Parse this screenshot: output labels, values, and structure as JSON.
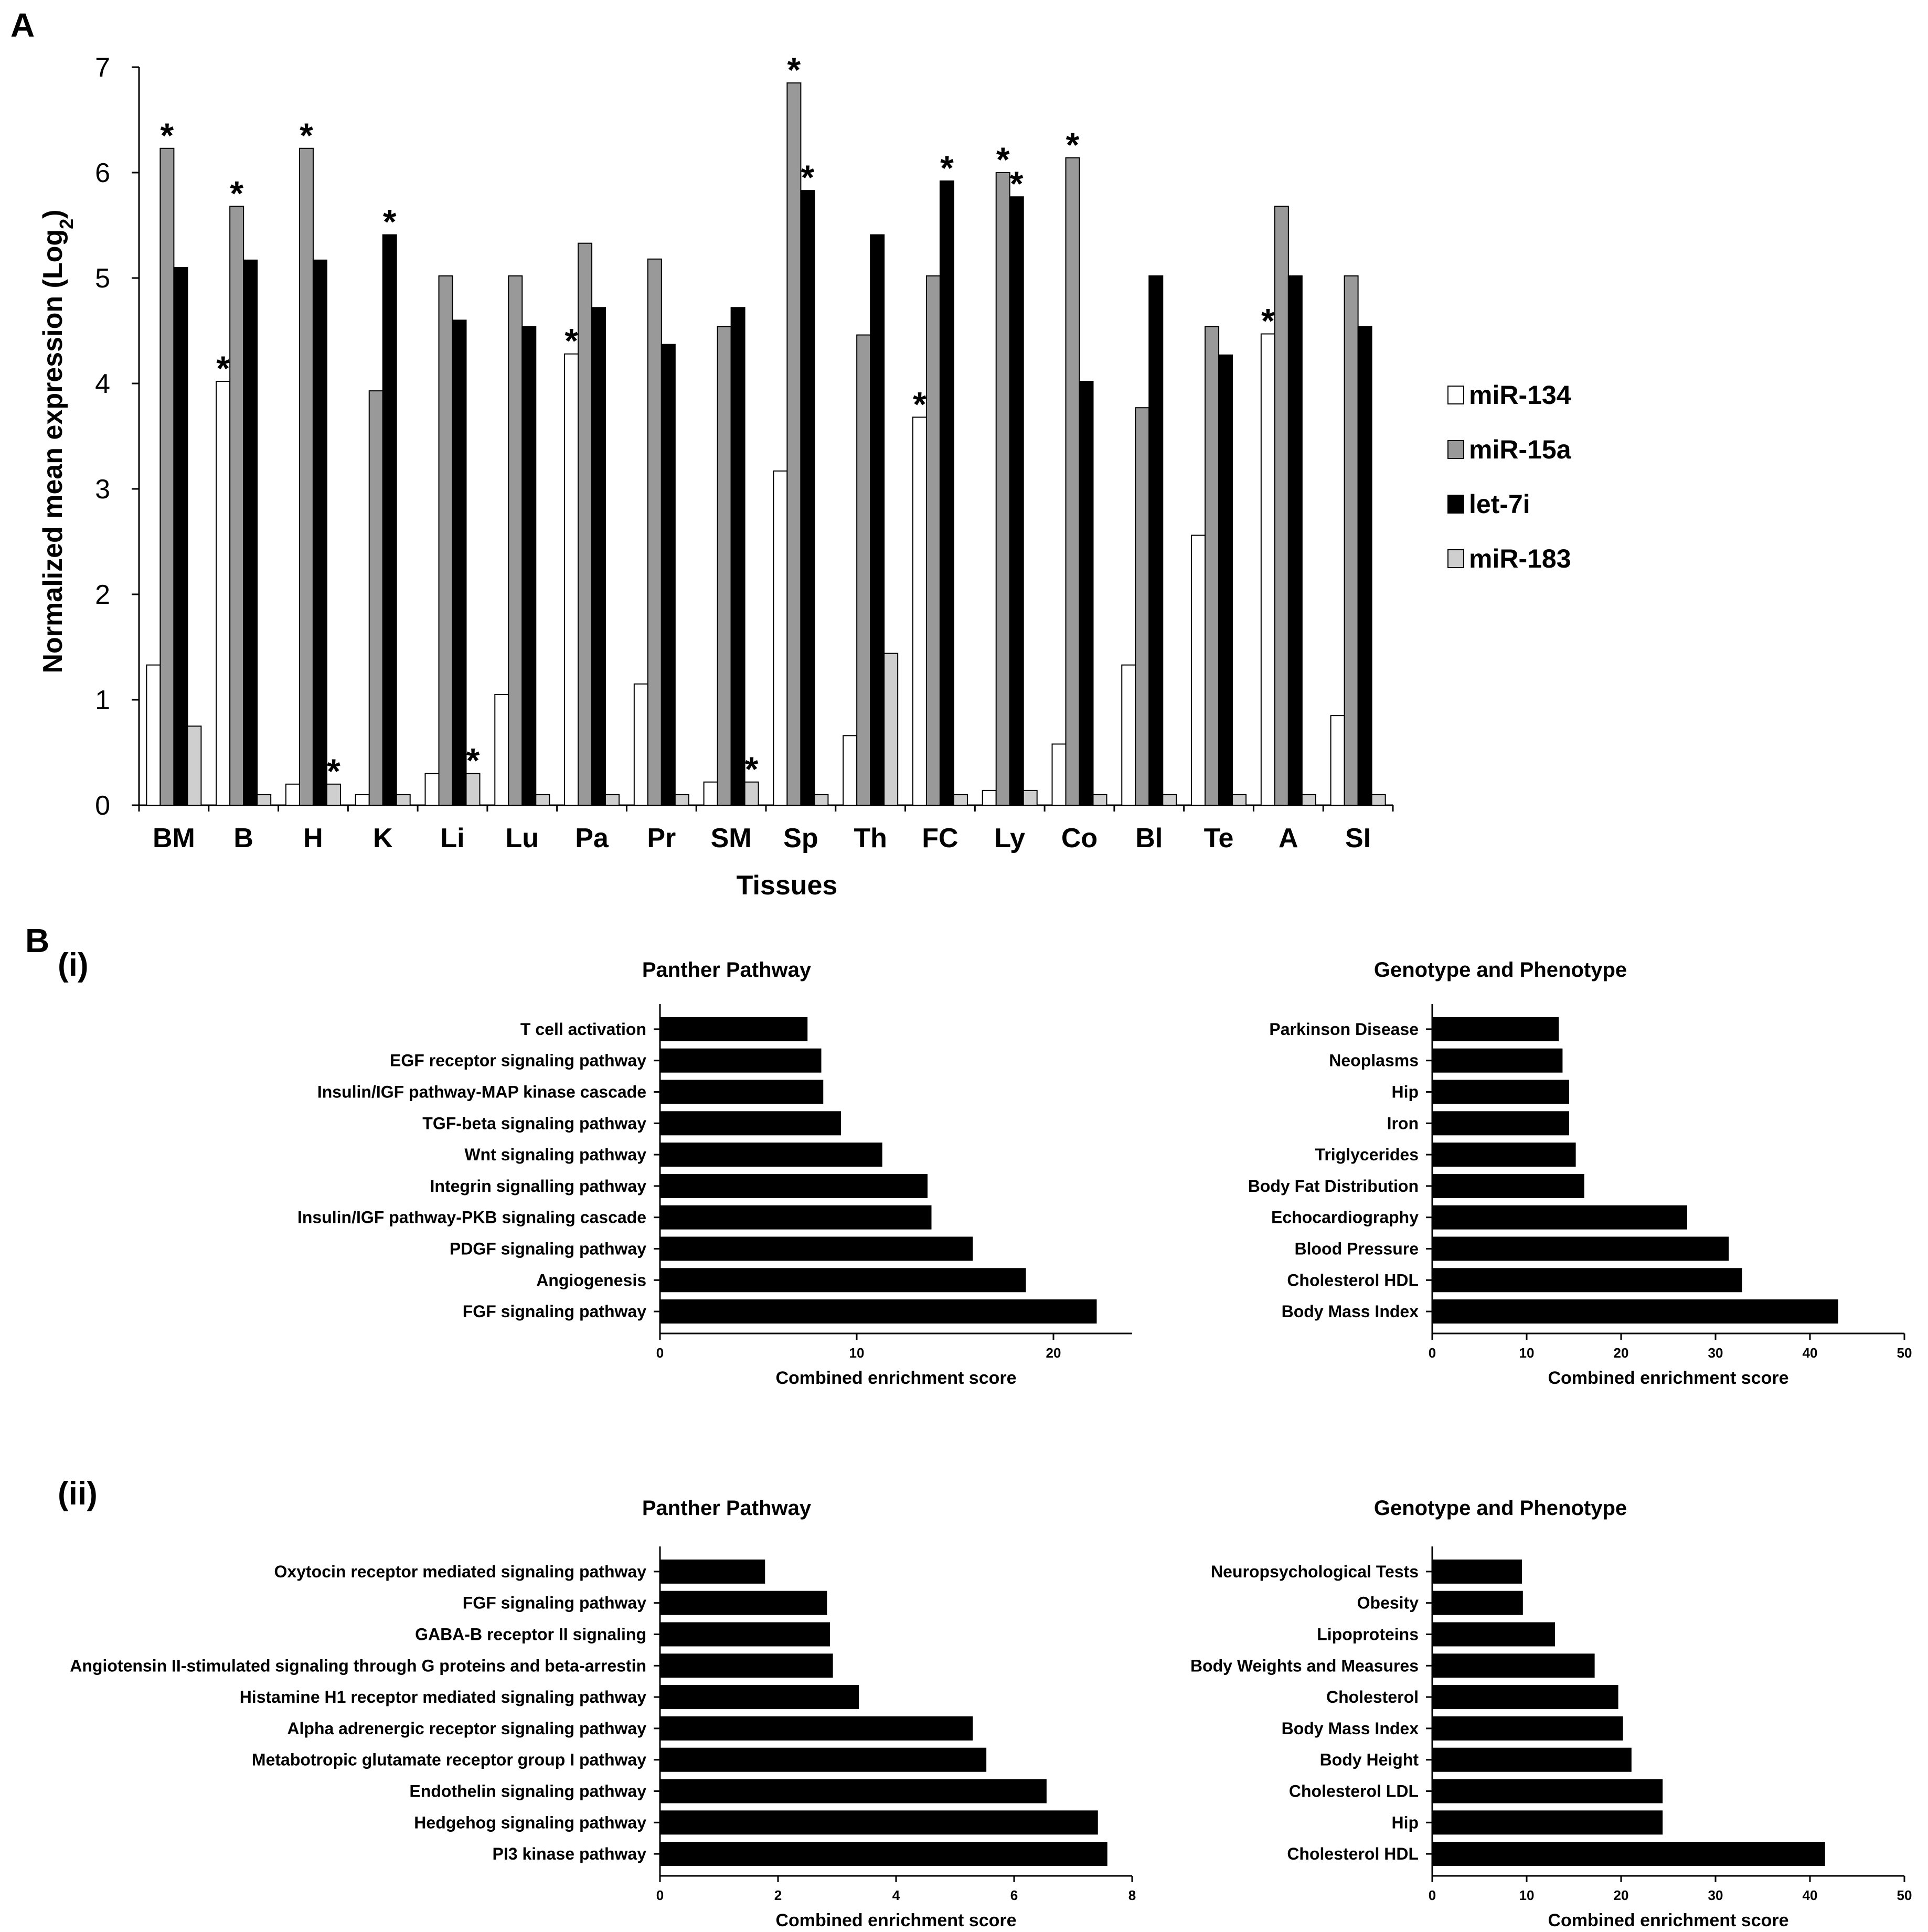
{
  "figure": {
    "panel_a_label": "A",
    "panel_b_label": "B",
    "sub_i_label": "(i)",
    "sub_ii_label": "(ii)"
  },
  "colors": {
    "miR-134": "#ffffff",
    "miR-15a": "#999999",
    "let-7i": "#000000",
    "miR-183": "#cfcfcf",
    "hbar": "#000000"
  },
  "chart_data": [
    {
      "id": "A",
      "type": "bar",
      "title": "",
      "xlabel": "Tissues",
      "ylabel_main": "Normalized mean expression (Log",
      "ylabel_sub": "2",
      "ylabel_close": ")",
      "ylim": [
        0,
        7
      ],
      "yticks": [
        0,
        1,
        2,
        3,
        4,
        5,
        6,
        7
      ],
      "grid": false,
      "legend_position": "right",
      "categories": [
        "BM",
        "B",
        "H",
        "K",
        "Li",
        "Lu",
        "Pa",
        "Pr",
        "SM",
        "Sp",
        "Th",
        "FC",
        "Ly",
        "Co",
        "Bl",
        "Te",
        "A",
        "SI"
      ],
      "series": [
        {
          "name": "miR-134",
          "values": [
            1.33,
            4.02,
            0.2,
            0.1,
            0.3,
            1.05,
            4.28,
            1.15,
            0.22,
            3.17,
            0.66,
            3.68,
            0.14,
            0.58,
            1.33,
            2.56,
            4.47,
            0.85
          ],
          "significant": [
            false,
            true,
            false,
            false,
            false,
            false,
            true,
            false,
            false,
            false,
            false,
            true,
            false,
            false,
            false,
            false,
            true,
            false
          ]
        },
        {
          "name": "miR-15a",
          "values": [
            6.23,
            5.68,
            6.23,
            3.93,
            5.02,
            5.02,
            5.33,
            5.18,
            4.54,
            6.85,
            4.46,
            5.02,
            6.0,
            6.14,
            3.77,
            4.54,
            5.68,
            5.02
          ],
          "significant": [
            true,
            true,
            true,
            false,
            false,
            false,
            false,
            false,
            false,
            true,
            false,
            false,
            true,
            true,
            false,
            false,
            false,
            false
          ]
        },
        {
          "name": "let-7i",
          "values": [
            5.1,
            5.17,
            5.17,
            5.41,
            4.6,
            4.54,
            4.72,
            4.37,
            4.72,
            5.83,
            5.41,
            5.92,
            5.77,
            4.02,
            5.02,
            4.27,
            5.02,
            4.54
          ],
          "significant": [
            false,
            false,
            false,
            true,
            false,
            false,
            false,
            false,
            false,
            true,
            false,
            true,
            true,
            false,
            false,
            false,
            false,
            false
          ]
        },
        {
          "name": "miR-183",
          "values": [
            0.75,
            0.1,
            0.2,
            0.1,
            0.3,
            0.1,
            0.1,
            0.1,
            0.22,
            0.1,
            1.44,
            0.1,
            0.14,
            0.1,
            0.1,
            0.1,
            0.1,
            0.1
          ],
          "significant": [
            false,
            false,
            true,
            false,
            true,
            false,
            false,
            false,
            true,
            false,
            false,
            false,
            false,
            false,
            false,
            false,
            false,
            false
          ]
        }
      ],
      "significance_marker": "*"
    },
    {
      "id": "B-i-panther",
      "type": "bar",
      "orientation": "horizontal",
      "title": "Panther Pathway",
      "xlabel": "Combined enrichment score",
      "xlim": [
        0,
        24
      ],
      "xticks": [
        0,
        10,
        20
      ],
      "categories": [
        "T cell activation",
        "EGF receptor signaling pathway",
        "Insulin/IGF pathway-MAP kinase cascade",
        "TGF-beta signaling pathway",
        "Wnt signaling pathway",
        "Integrin signalling pathway",
        "Insulin/IGF pathway-PKB signaling cascade",
        "PDGF signaling pathway",
        "Angiogenesis",
        "FGF signaling pathway"
      ],
      "values": [
        7.5,
        8.2,
        8.3,
        9.2,
        11.3,
        13.6,
        13.8,
        15.9,
        18.6,
        22.2
      ]
    },
    {
      "id": "B-i-phenotype",
      "type": "bar",
      "orientation": "horizontal",
      "title": "Genotype and Phenotype",
      "xlabel": "Combined enrichment score",
      "xlim": [
        0,
        50
      ],
      "xticks": [
        0,
        10,
        20,
        30,
        40,
        50
      ],
      "categories": [
        "Parkinson Disease",
        "Neoplasms",
        "Hip",
        "Iron",
        "Triglycerides",
        "Body Fat Distribution",
        "Echocardiography",
        "Blood Pressure",
        "Cholesterol HDL",
        "Body Mass Index"
      ],
      "values": [
        13.4,
        13.8,
        14.5,
        14.5,
        15.2,
        16.1,
        27.0,
        31.4,
        32.8,
        43.0
      ]
    },
    {
      "id": "B-ii-panther",
      "type": "bar",
      "orientation": "horizontal",
      "title": "Panther Pathway",
      "xlabel": "Combined enrichment score",
      "xlim": [
        0,
        8
      ],
      "xticks": [
        0,
        2,
        4,
        6,
        8
      ],
      "categories": [
        "Oxytocin receptor mediated signaling pathway",
        "FGF signaling pathway",
        "GABA-B receptor II signaling",
        "Angiotensin II-stimulated signaling through G proteins and beta-arrestin",
        "Histamine H1 receptor mediated signaling pathway",
        "Alpha adrenergic receptor signaling pathway",
        "Metabotropic glutamate receptor group I pathway",
        "Endothelin signaling pathway",
        "Hedgehog signaling pathway",
        "PI3 kinase pathway"
      ],
      "values": [
        1.78,
        2.83,
        2.88,
        2.93,
        3.37,
        5.3,
        5.53,
        6.55,
        7.42,
        7.58
      ]
    },
    {
      "id": "B-ii-phenotype",
      "type": "bar",
      "orientation": "horizontal",
      "title": "Genotype and Phenotype",
      "xlabel": "Combined enrichment score",
      "xlim": [
        0,
        50
      ],
      "xticks": [
        0,
        10,
        20,
        30,
        40,
        50
      ],
      "categories": [
        "Neuropsychological Tests",
        "Obesity",
        "Lipoproteins",
        "Body Weights and Measures",
        "Cholesterol",
        "Body Mass Index",
        "Body Height",
        "Cholesterol LDL",
        "Hip",
        "Cholesterol HDL"
      ],
      "values": [
        9.5,
        9.6,
        13.0,
        17.2,
        19.7,
        20.2,
        21.1,
        24.4,
        24.4,
        41.6
      ]
    }
  ]
}
